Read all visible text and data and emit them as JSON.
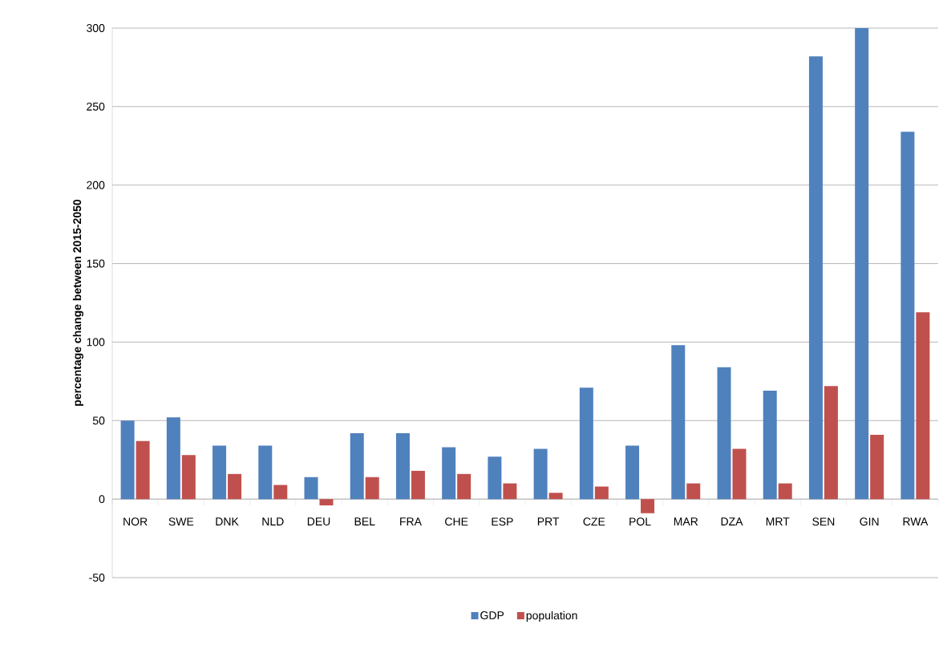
{
  "chart_data": {
    "type": "bar",
    "ylabel": "percentage change between 2015-2050",
    "categories": [
      "NOR",
      "SWE",
      "DNK",
      "NLD",
      "DEU",
      "BEL",
      "FRA",
      "CHE",
      "ESP",
      "PRT",
      "CZE",
      "POL",
      "MAR",
      "DZA",
      "MRT",
      "SEN",
      "GIN",
      "RWA"
    ],
    "series": [
      {
        "name": "GDP",
        "color": "#4f81bd",
        "values": [
          50,
          52,
          34,
          34,
          14,
          42,
          42,
          33,
          27,
          32,
          71,
          34,
          98,
          84,
          69,
          282,
          300,
          234
        ]
      },
      {
        "name": "population",
        "color": "#c0504d",
        "values": [
          37,
          28,
          16,
          9,
          -4,
          14,
          18,
          16,
          10,
          4,
          8,
          -9,
          10,
          32,
          10,
          72,
          41,
          119
        ]
      }
    ],
    "ylim": [
      -50,
      300
    ],
    "yticks": [
      -50,
      0,
      50,
      100,
      150,
      200,
      250,
      300
    ],
    "grid": "y",
    "legend": "bottom"
  }
}
